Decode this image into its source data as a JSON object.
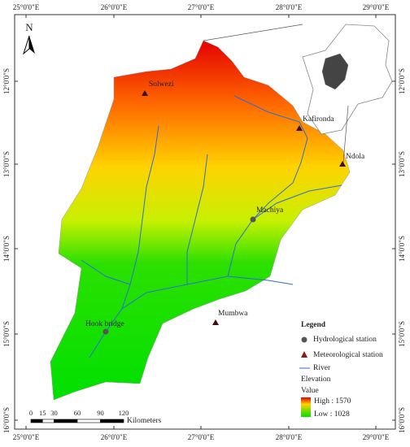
{
  "north_arrow": "N",
  "lon_labels": [
    "25°0'0\"E",
    "26°0'0\"E",
    "27°0'0\"E",
    "28°0'0\"E",
    "29°0'0\"E"
  ],
  "lat_labels": [
    "12°0'0\"S",
    "13°0'0\"S",
    "14°0'0\"S",
    "15°0'0\"S",
    "16°0'0\"S"
  ],
  "stations": [
    {
      "name": "Solwezi",
      "kind": "meteorological"
    },
    {
      "name": "Kafironda",
      "kind": "meteorological"
    },
    {
      "name": "Ndola",
      "kind": "meteorological"
    },
    {
      "name": "Machiya",
      "kind": "hydrological"
    },
    {
      "name": "Mumbwa",
      "kind": "meteorological"
    },
    {
      "name": "Hook bridge",
      "kind": "hydrological"
    }
  ],
  "legend": {
    "title": "Legend",
    "hydrological": "Hydrological station",
    "meteorological": "Meteorological station",
    "river": "River",
    "elevation": "Elevation",
    "value": "Value",
    "high": "High : 1570",
    "low": "Low : 1028"
  },
  "scale_bar": {
    "ticks": [
      0,
      15,
      30,
      60,
      90,
      120
    ],
    "unit": "Kilometers"
  }
}
